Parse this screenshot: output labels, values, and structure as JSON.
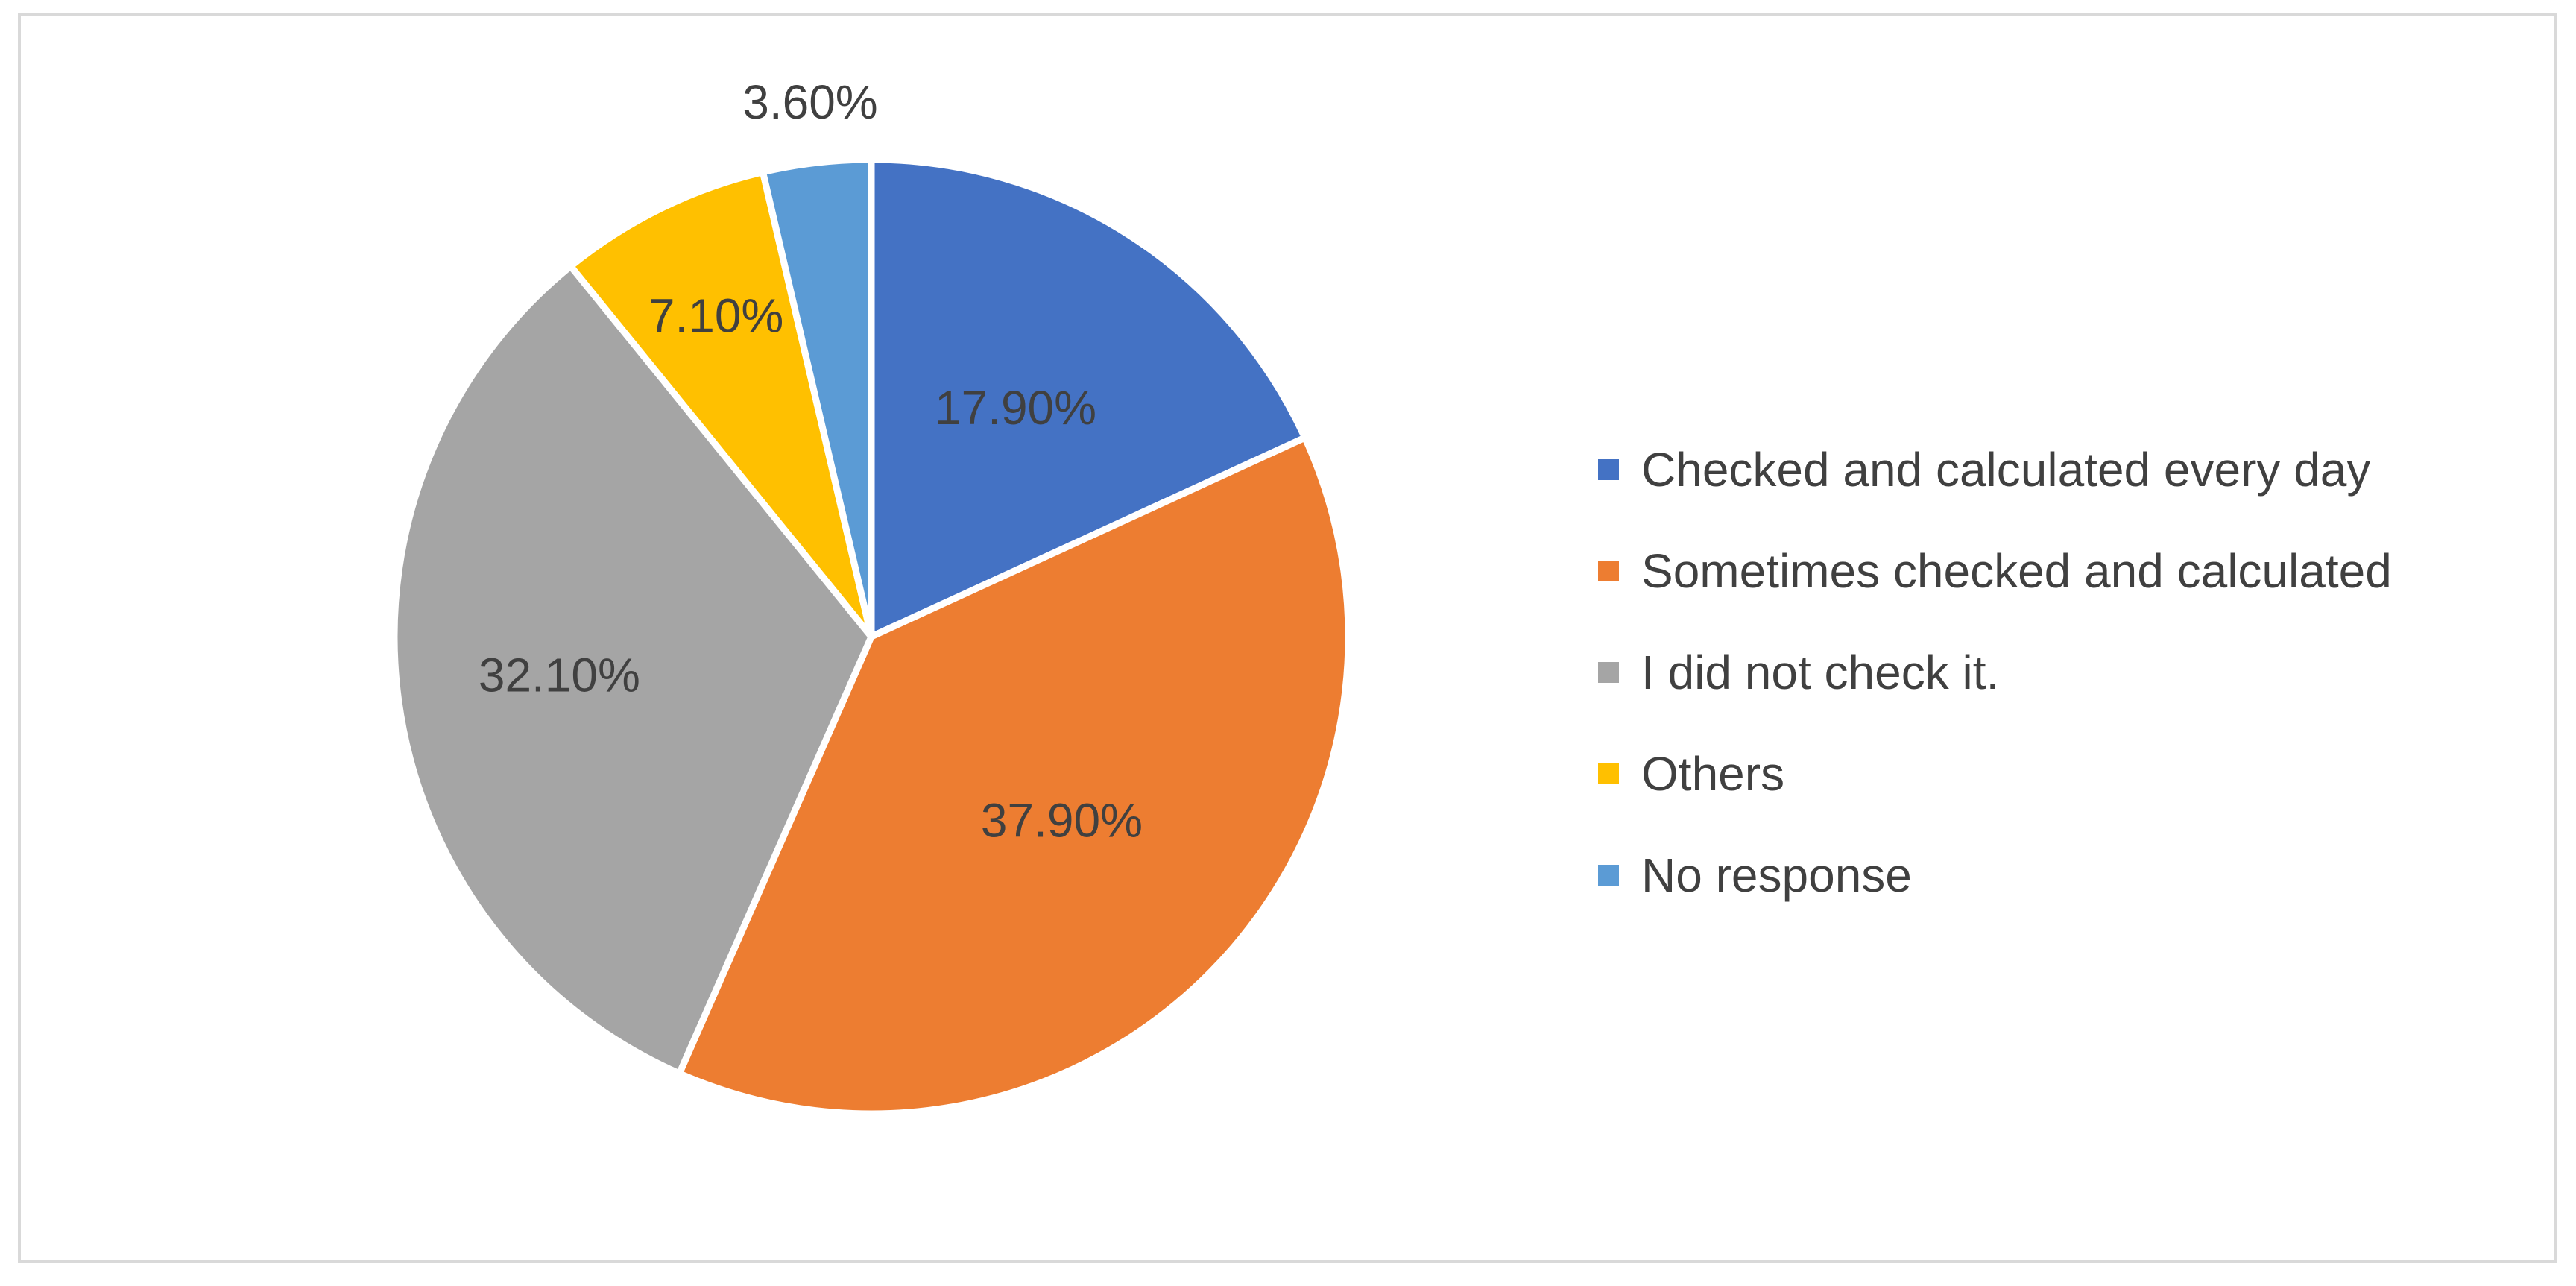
{
  "chart_data": {
    "type": "pie",
    "title": "",
    "slices": [
      {
        "label": "Checked and calculated every day",
        "value": 17.9,
        "display": "17.90%",
        "color": "#4472C4"
      },
      {
        "label": "Sometimes checked and calculated",
        "value": 37.9,
        "display": "37.90%",
        "color": "#ED7D31"
      },
      {
        "label": "I did not check it.",
        "value": 32.1,
        "display": "32.10%",
        "color": "#A5A5A5"
      },
      {
        "label": "Others",
        "value": 7.1,
        "display": "7.10%",
        "color": "#FFC000"
      },
      {
        "label": "No response",
        "value": 3.6,
        "display": "3.60%",
        "color": "#5B9BD5"
      }
    ],
    "legend": {
      "position": "right"
    }
  }
}
